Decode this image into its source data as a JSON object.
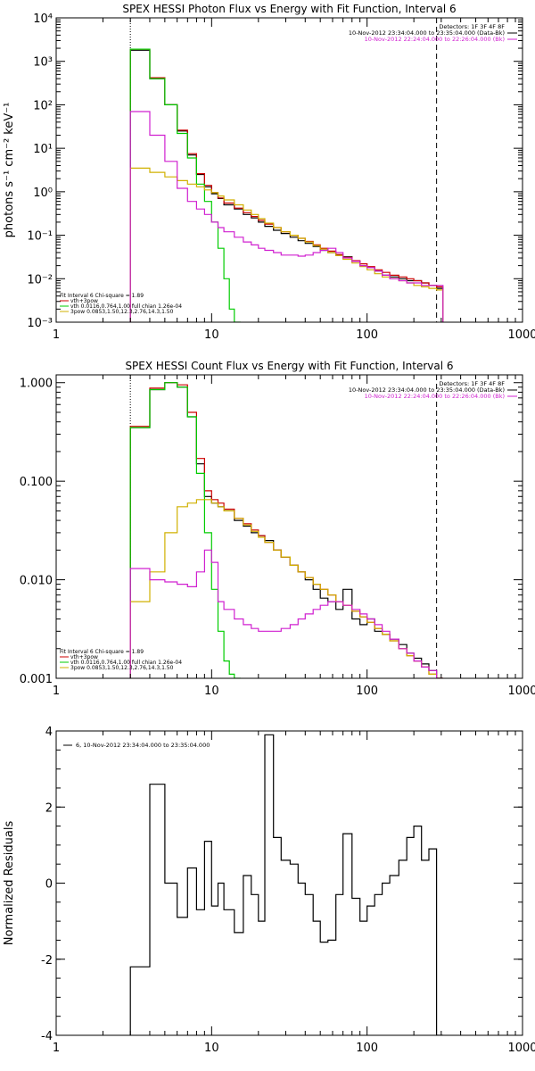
{
  "chart_data": [
    {
      "type": "line",
      "title": "SPEX HESSI Photon Flux vs Energy with Fit Function, Interval 6",
      "xlabel": "",
      "ylabel": "photons s⁻¹ cm⁻² keV⁻¹",
      "xscale": "log",
      "yscale": "log",
      "xlim": [
        1,
        1000
      ],
      "ylim": [
        0.001,
        10000
      ],
      "x_ticks": [
        1,
        10,
        100,
        1000
      ],
      "x_tick_labels": [
        "1",
        "10",
        "100",
        "1000"
      ],
      "y_ticks": [
        0.001,
        0.01,
        0.1,
        1,
        10,
        100,
        1000,
        10000
      ],
      "y_tick_labels": [
        "10⁻³",
        "10⁻²",
        "10⁻¹",
        "10⁰",
        "10¹",
        "10²",
        "10³",
        "10⁴"
      ],
      "vlines": [
        {
          "x": 3,
          "style": "dotted"
        },
        {
          "x": 280,
          "style": "dashed"
        }
      ],
      "annotations": [
        "Detectors: 1F 3F 4F 8F",
        "10-Nov-2012 23:34:04.000 to 23:35:04.000 (Data-Bk)",
        "10-Nov-2012 22:24:04.000 to 22:26:04.000 (Bk)"
      ],
      "annotation_colors": [
        "#000000",
        "#000000",
        "#d020d0"
      ],
      "legend": [
        {
          "label": "Fit Interval 6   Chi-square = 1.89",
          "color": "#000000"
        },
        {
          "label": "vth+3pow",
          "color": "#cc0000"
        },
        {
          "label": "vth 0.0116,0.764,1.00  full chian 1.26e-04",
          "color": "#00cc00"
        },
        {
          "label": "3pow 0.0853,1.50,12.3,2.76,14.3,1.50",
          "color": "#d0b000"
        }
      ],
      "series": [
        {
          "name": "Data-Bk",
          "color": "#000000",
          "x": [
            3,
            4,
            5,
            6,
            7,
            8,
            9,
            10,
            11,
            12,
            14,
            16,
            18,
            20,
            22,
            25,
            28,
            32,
            36,
            40,
            45,
            50,
            56,
            63,
            70,
            80,
            90,
            100,
            112,
            125,
            140,
            160,
            180,
            200,
            224,
            250,
            280
          ],
          "y": [
            1800,
            400,
            100,
            25,
            7,
            2.5,
            1.3,
            0.9,
            0.7,
            0.5,
            0.4,
            0.3,
            0.25,
            0.2,
            0.16,
            0.13,
            0.11,
            0.09,
            0.075,
            0.065,
            0.055,
            0.045,
            0.04,
            0.035,
            0.032,
            0.025,
            0.02,
            0.018,
            0.015,
            0.012,
            0.011,
            0.01,
            0.009,
            0.009,
            0.008,
            0.007,
            0.006
          ]
        },
        {
          "name": "vth+3pow",
          "color": "#cc0000",
          "x": [
            3,
            4,
            5,
            6,
            7,
            8,
            9,
            10,
            11,
            12,
            14,
            16,
            18,
            20,
            22,
            25,
            28,
            32,
            36,
            40,
            45,
            50,
            56,
            63,
            70,
            80,
            90,
            100,
            112,
            125,
            140,
            160,
            180,
            200,
            224,
            250,
            280
          ],
          "y": [
            1900,
            420,
            100,
            26,
            7.5,
            2.6,
            1.4,
            0.95,
            0.72,
            0.55,
            0.42,
            0.33,
            0.27,
            0.22,
            0.18,
            0.15,
            0.12,
            0.1,
            0.085,
            0.072,
            0.06,
            0.05,
            0.043,
            0.036,
            0.031,
            0.026,
            0.022,
            0.019,
            0.016,
            0.014,
            0.012,
            0.011,
            0.01,
            0.009,
            0.008,
            0.007,
            0.0065
          ]
        },
        {
          "name": "vth",
          "color": "#00cc00",
          "x": [
            3,
            4,
            5,
            6,
            7,
            8,
            9,
            10,
            11,
            12,
            13,
            14
          ],
          "y": [
            1900,
            400,
            100,
            22,
            6,
            1.5,
            0.6,
            0.2,
            0.05,
            0.01,
            0.002,
            0.0008
          ]
        },
        {
          "name": "3pow",
          "color": "#d0b000",
          "x": [
            3,
            4,
            5,
            6,
            7,
            8,
            9,
            10,
            11,
            12,
            14,
            16,
            18,
            20,
            22,
            25,
            28,
            32,
            36,
            40,
            45,
            50,
            56,
            63,
            70,
            80,
            90,
            100,
            112,
            125,
            140,
            160,
            180,
            200,
            224,
            250,
            280
          ],
          "y": [
            3.5,
            2.8,
            2.2,
            1.8,
            1.5,
            1.3,
            1.1,
            0.95,
            0.8,
            0.65,
            0.5,
            0.38,
            0.3,
            0.24,
            0.19,
            0.15,
            0.12,
            0.1,
            0.085,
            0.07,
            0.058,
            0.048,
            0.04,
            0.034,
            0.028,
            0.023,
            0.019,
            0.016,
            0.013,
            0.011,
            0.01,
            0.009,
            0.008,
            0.007,
            0.0065,
            0.006,
            0.0055
          ]
        },
        {
          "name": "Bk",
          "color": "#d020d0",
          "x": [
            3,
            4,
            5,
            6,
            7,
            8,
            9,
            10,
            11,
            12,
            14,
            16,
            18,
            20,
            22,
            25,
            28,
            32,
            36,
            40,
            45,
            50,
            56,
            63,
            70,
            80,
            90,
            100,
            112,
            125,
            140,
            160,
            180,
            200,
            224,
            250,
            280
          ],
          "y": [
            70,
            20,
            5,
            1.2,
            0.6,
            0.4,
            0.3,
            0.2,
            0.15,
            0.12,
            0.09,
            0.07,
            0.06,
            0.05,
            0.045,
            0.04,
            0.035,
            0.035,
            0.033,
            0.035,
            0.04,
            0.045,
            0.05,
            0.04,
            0.03,
            0.025,
            0.02,
            0.018,
            0.015,
            0.012,
            0.01,
            0.009,
            0.008,
            0.008,
            0.007,
            0.007,
            0.007
          ]
        }
      ]
    },
    {
      "type": "line",
      "title": "SPEX HESSI Count Flux vs Energy with Fit Function, Interval 6",
      "xlabel": "",
      "ylabel": "",
      "xscale": "log",
      "yscale": "log",
      "xlim": [
        1,
        1000
      ],
      "ylim": [
        0.001,
        1.2
      ],
      "x_ticks": [
        1,
        10,
        100,
        1000
      ],
      "x_tick_labels": [
        "1",
        "10",
        "100",
        "1000"
      ],
      "y_ticks": [
        0.001,
        0.01,
        0.1,
        1
      ],
      "y_tick_labels": [
        "0.001",
        "0.010",
        "0.100",
        "1.000"
      ],
      "vlines": [
        {
          "x": 3,
          "style": "dotted"
        },
        {
          "x": 280,
          "style": "dashed"
        }
      ],
      "annotations": [
        "Detectors: 1F 3F 4F 8F",
        "10-Nov-2012 23:34:04.000 to 23:35:04.000 (Data-Bk)",
        "10-Nov-2012 22:24:04.000 to 22:26:04.000 (Bk)"
      ],
      "annotation_colors": [
        "#000000",
        "#000000",
        "#d020d0"
      ],
      "legend": [
        {
          "label": "Fit Interval 6   Chi-square = 1.89",
          "color": "#000000"
        },
        {
          "label": "vth+3pow",
          "color": "#cc0000"
        },
        {
          "label": "vth 0.0116,0.764,1.00  full chian 1.26e-04",
          "color": "#00cc00"
        },
        {
          "label": "3pow 0.0853,1.50,12.3,2.76,14.3,1.50",
          "color": "#d0b000"
        }
      ],
      "series": [
        {
          "name": "Data-Bk",
          "color": "#000000",
          "x": [
            3,
            4,
            5,
            6,
            7,
            8,
            9,
            10,
            11,
            12,
            14,
            16,
            18,
            20,
            22,
            25,
            28,
            32,
            36,
            40,
            45,
            50,
            56,
            63,
            70,
            80,
            90,
            100,
            112,
            125,
            140,
            160,
            180,
            200,
            224,
            250,
            280
          ],
          "y": [
            0.35,
            0.85,
            1.0,
            0.9,
            0.45,
            0.15,
            0.07,
            0.06,
            0.055,
            0.05,
            0.04,
            0.035,
            0.03,
            0.028,
            0.025,
            0.02,
            0.017,
            0.014,
            0.012,
            0.01,
            0.008,
            0.0065,
            0.006,
            0.005,
            0.008,
            0.004,
            0.0035,
            0.004,
            0.003,
            0.0028,
            0.0025,
            0.0022,
            0.0018,
            0.0016,
            0.0014,
            0.0012,
            0.001
          ]
        },
        {
          "name": "vth+3pow",
          "color": "#cc0000",
          "x": [
            3,
            4,
            5,
            6,
            7,
            8,
            9,
            10,
            11,
            12,
            14,
            16,
            18,
            20,
            22,
            25,
            28,
            32,
            36,
            40,
            45,
            50,
            56,
            63,
            70,
            80,
            90,
            100,
            112,
            125,
            140,
            160,
            180,
            200,
            224,
            250,
            280
          ],
          "y": [
            0.36,
            0.88,
            1.0,
            0.95,
            0.5,
            0.17,
            0.08,
            0.065,
            0.06,
            0.052,
            0.042,
            0.037,
            0.032,
            0.028,
            0.024,
            0.02,
            0.017,
            0.014,
            0.012,
            0.0105,
            0.009,
            0.008,
            0.007,
            0.006,
            0.0055,
            0.0048,
            0.0042,
            0.0037,
            0.0032,
            0.0028,
            0.0024,
            0.002,
            0.0017,
            0.0015,
            0.0013,
            0.0011,
            0.001
          ]
        },
        {
          "name": "vth",
          "color": "#00cc00",
          "x": [
            3,
            4,
            5,
            6,
            7,
            8,
            9,
            10,
            11,
            12,
            13,
            14
          ],
          "y": [
            0.35,
            0.85,
            1.0,
            0.9,
            0.45,
            0.12,
            0.03,
            0.008,
            0.003,
            0.0015,
            0.0011,
            0.001
          ]
        },
        {
          "name": "3pow",
          "color": "#d0b000",
          "x": [
            3,
            4,
            5,
            6,
            7,
            8,
            9,
            10,
            11,
            12,
            14,
            16,
            18,
            20,
            22,
            25,
            28,
            32,
            36,
            40,
            45,
            50,
            56,
            63,
            70,
            80,
            90,
            100,
            112,
            125,
            140,
            160,
            180,
            200,
            224,
            250,
            280
          ],
          "y": [
            0.006,
            0.012,
            0.03,
            0.055,
            0.06,
            0.065,
            0.065,
            0.06,
            0.055,
            0.05,
            0.042,
            0.036,
            0.031,
            0.027,
            0.024,
            0.02,
            0.017,
            0.014,
            0.012,
            0.0105,
            0.009,
            0.008,
            0.007,
            0.006,
            0.0055,
            0.0048,
            0.0042,
            0.0037,
            0.0032,
            0.0028,
            0.0024,
            0.002,
            0.0017,
            0.0015,
            0.0013,
            0.0011,
            0.001
          ]
        },
        {
          "name": "Bk",
          "color": "#d020d0",
          "x": [
            3,
            4,
            5,
            6,
            7,
            8,
            9,
            10,
            11,
            12,
            14,
            16,
            18,
            20,
            22,
            25,
            28,
            32,
            36,
            40,
            45,
            50,
            56,
            63,
            70,
            80,
            90,
            100,
            112,
            125,
            140,
            160,
            180,
            200,
            224,
            250,
            280
          ],
          "y": [
            0.013,
            0.01,
            0.0095,
            0.009,
            0.0085,
            0.012,
            0.02,
            0.015,
            0.006,
            0.005,
            0.004,
            0.0035,
            0.0032,
            0.003,
            0.003,
            0.003,
            0.0032,
            0.0035,
            0.004,
            0.0045,
            0.005,
            0.0055,
            0.006,
            0.006,
            0.0055,
            0.005,
            0.0045,
            0.004,
            0.0035,
            0.003,
            0.0025,
            0.002,
            0.0018,
            0.0015,
            0.0013,
            0.0012,
            0.001
          ]
        }
      ]
    },
    {
      "type": "line",
      "title": "",
      "xlabel": "",
      "ylabel": "Normalized Residuals",
      "xscale": "log",
      "yscale": "linear",
      "xlim": [
        1,
        1000
      ],
      "ylim": [
        -4,
        4
      ],
      "x_ticks": [
        1,
        10,
        100,
        1000
      ],
      "x_tick_labels": [
        "1",
        "10",
        "100",
        "1000"
      ],
      "y_ticks": [
        -4,
        -2,
        0,
        2,
        4
      ],
      "y_tick_labels": [
        "-4",
        "-2",
        "0",
        "2",
        "4"
      ],
      "annotations": [
        "6, 10-Nov-2012 23:34:04.000 to 23:35:04.000"
      ],
      "annotation_colors": [
        "#000000"
      ],
      "series": [
        {
          "name": "",
          "color": "#000000",
          "x": [
            3,
            4,
            5,
            6,
            7,
            8,
            9,
            10,
            11,
            12,
            14,
            16,
            18,
            20,
            22,
            25,
            28,
            32,
            36,
            40,
            45,
            50,
            56,
            63,
            70,
            80,
            90,
            100,
            112,
            125,
            140,
            160,
            180,
            200,
            224,
            250,
            280
          ],
          "y": [
            -2.2,
            2.6,
            0.0,
            -0.9,
            0.4,
            -0.7,
            1.1,
            -0.6,
            0.0,
            -0.7,
            -1.3,
            0.2,
            -0.3,
            -1.0,
            3.9,
            1.2,
            0.6,
            0.5,
            0.0,
            -0.3,
            -1.0,
            -1.55,
            -1.5,
            -0.3,
            1.3,
            -0.4,
            -1.0,
            -0.6,
            -0.3,
            0.0,
            0.2,
            0.6,
            1.2,
            1.5,
            0.6,
            0.9,
            -4.0
          ]
        }
      ]
    }
  ]
}
